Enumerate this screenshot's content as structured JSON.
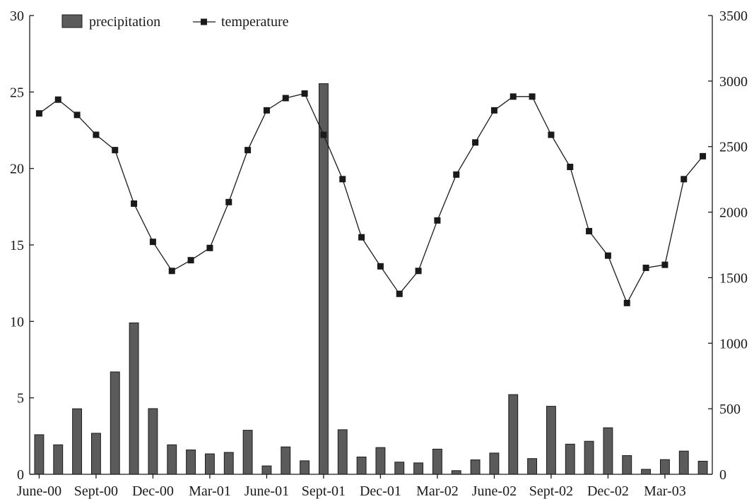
{
  "chart_data": {
    "type": "bar+line",
    "title": "",
    "xlabel": "",
    "ylabel_left": "",
    "ylabel_right": "",
    "categories": [
      "Jun-00",
      "Jul-00",
      "Aug-00",
      "Sep-00",
      "Oct-00",
      "Nov-00",
      "Dec-00",
      "Jan-01",
      "Feb-01",
      "Mar-01",
      "Apr-01",
      "May-01",
      "Jun-01",
      "Jul-01",
      "Aug-01",
      "Sep-01",
      "Oct-01",
      "Nov-01",
      "Dec-01",
      "Jan-02",
      "Feb-02",
      "Mar-02",
      "Apr-02",
      "May-02",
      "Jun-02",
      "Jul-02",
      "Aug-02",
      "Sep-02",
      "Oct-02",
      "Nov-02",
      "Dec-02",
      "Jan-03",
      "Feb-03",
      "Mar-03",
      "Apr-03",
      "May-03"
    ],
    "x_tick_labels": [
      {
        "index": 0,
        "label": "June-00"
      },
      {
        "index": 3,
        "label": "Sept-00"
      },
      {
        "index": 6,
        "label": "Dec-00"
      },
      {
        "index": 9,
        "label": "Mar-01"
      },
      {
        "index": 12,
        "label": "June-01"
      },
      {
        "index": 15,
        "label": "Sept-01"
      },
      {
        "index": 18,
        "label": "Dec-01"
      },
      {
        "index": 21,
        "label": "Mar-02"
      },
      {
        "index": 24,
        "label": "June-02"
      },
      {
        "index": 27,
        "label": "Sept-02"
      },
      {
        "index": 30,
        "label": "Dec-02"
      },
      {
        "index": 33,
        "label": "Mar-03"
      }
    ],
    "left_axis": {
      "ylim": [
        0,
        30
      ],
      "ticks": [
        "0",
        "5",
        "10",
        "15",
        "20",
        "25",
        "30"
      ]
    },
    "right_axis": {
      "ylim": [
        0,
        3500
      ],
      "ticks": [
        "0",
        "500",
        "1000",
        "1500",
        "2000",
        "2500",
        "3000",
        "3500"
      ]
    },
    "series": [
      {
        "name": "precipitation",
        "type": "bar",
        "axis": "right",
        "color": "#5b5b5b",
        "values": [
          302,
          225,
          500,
          313,
          781,
          1155,
          501,
          225,
          186,
          156,
          167,
          336,
          64,
          209,
          103,
          2980,
          340,
          132,
          204,
          93,
          87,
          192,
          28,
          110,
          162,
          608,
          120,
          519,
          230,
          252,
          355,
          143,
          38,
          112,
          177,
          100
        ]
      },
      {
        "name": "temperature",
        "type": "line",
        "axis": "left",
        "marker": "square",
        "color": "#1a1a1a",
        "values": [
          23.6,
          24.5,
          23.5,
          22.2,
          21.2,
          17.7,
          15.2,
          13.3,
          14.0,
          14.8,
          17.8,
          21.2,
          23.8,
          24.6,
          24.9,
          22.2,
          19.3,
          15.5,
          13.6,
          11.8,
          13.3,
          16.6,
          19.6,
          21.7,
          23.8,
          24.7,
          24.7,
          22.2,
          20.1,
          15.9,
          14.3,
          11.2,
          13.5,
          13.7,
          19.3,
          20.8
        ]
      }
    ],
    "legend": {
      "position": "top-left",
      "entries": [
        "precipitation",
        "temperature"
      ]
    },
    "grid": false
  }
}
